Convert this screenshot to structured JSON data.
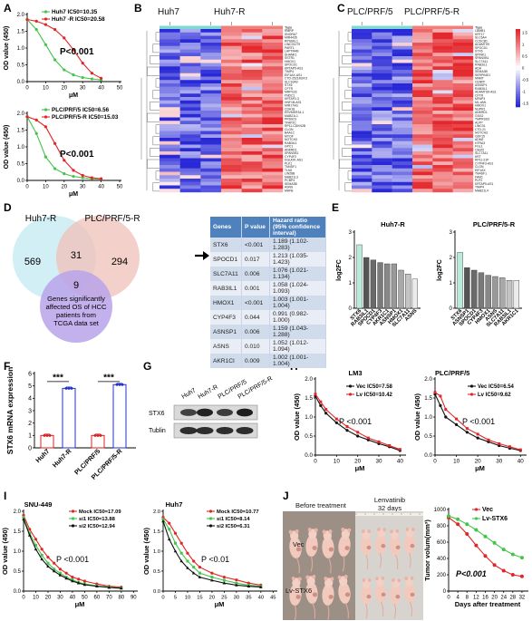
{
  "panels": {
    "A": {
      "label": "A",
      "top": {
        "legend": [
          {
            "name": "Huh7 IC50=10.35",
            "color": "#44c44a"
          },
          {
            "name": "Huh7 -R IC50=20.58",
            "color": "#e32526"
          }
        ],
        "pvalue": "P<0.001",
        "ylabel": "OD value (450)",
        "xlabel": "μM",
        "xticks": [
          "0",
          "10",
          "20",
          "30",
          "40",
          "50"
        ],
        "yticks": [
          "0.0",
          "0.5",
          "1.0",
          "1.5",
          "2.0"
        ]
      },
      "bottom": {
        "legend": [
          {
            "name": "PLC/PRF/5 IC50=6.56",
            "color": "#44c44a"
          },
          {
            "name": "PLC/PRF/5-R IC50=15.03",
            "color": "#e32526"
          }
        ],
        "pvalue": "P<0.001",
        "ylabel": "OD value (450)",
        "xlabel": "μM",
        "xticks": [
          "0",
          "10",
          "20",
          "30",
          "40",
          "50"
        ],
        "yticks": [
          "0.0",
          "0.5",
          "1.0",
          "1.5",
          "2.0"
        ]
      }
    },
    "B": {
      "label": "B",
      "group1": "Huh7",
      "group2": "Huh7-R",
      "type_label": "Type",
      "genes": [
        "RMRP",
        "SNORA7",
        "MIR4435",
        "RPS6KL1",
        "LINC01279",
        "PART1",
        "LAPTM4B",
        "SHANK1",
        "SSTR1",
        "HMOX1",
        "SPOCD1",
        "KRTAP5-AS1",
        "TIMP4",
        "EIF1AX-AS1",
        "CTD-2521M24.5",
        "SLC16A9",
        "STX6",
        "CFTR",
        "MRPS33",
        "FNDC1",
        "KRTAP2-3",
        "HNF1B-AS1",
        "MIR17HG",
        "CDH18",
        "ERVMER34-1",
        "MAB21L1",
        "PRSS23",
        "TFAP2C",
        "RP11-CDKN2B",
        "CLGN",
        "BAALC",
        "MYOF",
        "NOTCH3",
        "RAB3IL1",
        "GPC1",
        "ANKRD1",
        "SPANXB1",
        "CYP4F3",
        "DGUOK-AS1",
        "PLK1",
        "TM4SF1",
        "TLN2",
        "LIN28B",
        "MAB21L3",
        "PCBP4",
        "SEMA3B",
        "ASNS",
        "MAFB"
      ]
    },
    "C": {
      "label": "C",
      "group1": "PLC/PRF/5",
      "group2": "PLC/PRF/5-R",
      "type_label": "Type",
      "scale_ticks": [
        "1.5",
        "1",
        "0.5",
        "0",
        "-0.5",
        "-1",
        "-1.5"
      ],
      "genes": [
        "LAMB1",
        "KRT17",
        "SLC6A4",
        "CCDC80",
        "ADAMTS9",
        "SPOCD1",
        "STX6",
        "SPINK1",
        "SPANXB1",
        "SLC7A11",
        "RAB3IL1",
        "ADA",
        "SEMA3B",
        "SERPIND1",
        "NNMT",
        "CENPF",
        "ASNSP1",
        "RAB3IL1",
        "ADAMTS9-AS1",
        "CFTR",
        "MFAP3",
        "ML-AML",
        "HMOX1",
        "NUPR1",
        "ANKRD1",
        "GSG2",
        "TMPRSS3",
        "ALPP",
        "LINC01",
        "CTD-21",
        "NOTCH3",
        "GDF15",
        "ADM2",
        "HTRA3",
        "FGL1",
        "C8orf2",
        "SLC7A11",
        "KRT",
        "RP11-21P",
        "CYP4F3-AS1",
        "CLGN",
        "EIF1AX",
        "TM4SF1",
        "FAM1",
        "PLP2",
        "KRTAP5-AS1",
        "TIMP4",
        "MAB21L4"
      ]
    },
    "D": {
      "label": "D",
      "venn": {
        "set1_name": "Huh7-R",
        "set2_name": "PLC/PRF/5-R",
        "only1": "569",
        "both": "31",
        "only2": "294",
        "center": "9",
        "set3_label_lines": [
          "Genes significantly",
          "affected OS of HCC",
          "patients from",
          "TCGA data set"
        ]
      },
      "table": {
        "headers": [
          "Genes",
          "P value",
          "Hazard ratio (95% confidence interval)"
        ],
        "rows": [
          [
            "STX6",
            "<0.001",
            "1.189 (1.102-1.283)"
          ],
          [
            "SPOCD1",
            "0.017",
            "1.213 (1.035-1.423)"
          ],
          [
            "SLC7A11",
            "0.006",
            "1.076 (1.021-1.134)"
          ],
          [
            "RAB3IL1",
            "0.001",
            "1.058 (1.024-1.093)"
          ],
          [
            "HMOX1",
            "<0.001",
            "1.003 (1.001-1.004)"
          ],
          [
            "CYP4F3",
            "0.044",
            "0.991 (0.982-1.000)"
          ],
          [
            "ASNSP1",
            "0.006",
            "1.159 (1.043-1.288)"
          ],
          [
            "ASNS",
            "0.010",
            "1.052 (1.012-1.094)"
          ],
          [
            "AKR1CI",
            "0.009",
            "1.002 (1.001-1.004)"
          ]
        ]
      }
    },
    "E": {
      "label": "E",
      "ylabel": "log2FC",
      "yticks": [
        "0",
        "1",
        "2",
        "3"
      ],
      "left_title": "Huh7-R",
      "right_title": "PLC/PRF/5-R"
    },
    "F": {
      "label": "F",
      "ylabel": "STX6 mRNA expression",
      "yticks": [
        "0",
        "1",
        "2",
        "3",
        "4",
        "5",
        "6"
      ],
      "sig1": "***",
      "sig2": "***"
    },
    "G": {
      "label": "G",
      "lanes": [
        "Huh7",
        "Huh7-R",
        "PLC/PRF/5",
        "PLC/PRF/5-R"
      ],
      "rows": [
        "STX6",
        "Tublin"
      ]
    },
    "H": {
      "label": "H",
      "left": {
        "title": "LM3",
        "legend": [
          {
            "name": "Vec IC50=7.58",
            "color": "#111111"
          },
          {
            "name": "Lv  IC50=10.42",
            "color": "#e32526"
          }
        ],
        "pvalue": "P <0.001",
        "ylabel": "OD value (450)",
        "xlabel": "μM",
        "xticks": [
          "0",
          "10",
          "20",
          "30",
          "40"
        ],
        "yticks": [
          "0.0",
          "0.5",
          "1.0",
          "1.5",
          "2.0"
        ]
      },
      "right": {
        "title": "PLC/PRF/5",
        "legend": [
          {
            "name": "Vec IC50=6.54",
            "color": "#111111"
          },
          {
            "name": "Lv  IC50=9.62",
            "color": "#e32526"
          }
        ],
        "pvalue": "P <0.001",
        "ylabel": "OD value (450)",
        "xlabel": "μM",
        "xticks": [
          "0",
          "10",
          "20",
          "30",
          "40"
        ],
        "yticks": [
          "0.0",
          "0.5",
          "1.0",
          "1.5",
          "2.0"
        ]
      }
    },
    "I": {
      "label": "I",
      "left": {
        "title": "SNU-449",
        "legend": [
          {
            "name": "Mock IC50=17.09",
            "color": "#e32526"
          },
          {
            "name": "si1 IC50=13.88",
            "color": "#44c44a"
          },
          {
            "name": "si2 IC50=12.94",
            "color": "#111111"
          }
        ],
        "pvalue": "P <0.001",
        "ylabel": "OD value (450)",
        "xlabel": "μM",
        "xticks": [
          "0",
          "10",
          "20",
          "30",
          "40",
          "50",
          "60",
          "70",
          "80",
          "90"
        ],
        "yticks": [
          "0.0",
          "0.5",
          "1.0",
          "1.5",
          "2.0"
        ]
      },
      "right": {
        "title": "Huh7",
        "legend": [
          {
            "name": "Mock IC50=10.77",
            "color": "#e32526"
          },
          {
            "name": "si1 IC50=8.14",
            "color": "#44c44a"
          },
          {
            "name": "si2 IC50=6.31",
            "color": "#111111"
          }
        ],
        "pvalue": "P <0.01",
        "ylabel": "OD value (450)",
        "xlabel": "μM",
        "xticks": [
          "0",
          "5",
          "10",
          "15",
          "20",
          "25",
          "30",
          "35",
          "40",
          "45"
        ],
        "yticks": [
          "0.0",
          "0.5",
          "1.0",
          "1.5",
          "2.0"
        ]
      }
    },
    "J": {
      "label": "J",
      "before_title": "Before treatment",
      "after_title_line1": "Lenvatinib",
      "after_title_line2": "32 days",
      "row1": "Vec",
      "row2": "Lv-STX6",
      "chart": {
        "legend": [
          {
            "name": "Vec",
            "color": "#e32526"
          },
          {
            "name": "Lv-STX6",
            "color": "#44c44a"
          }
        ],
        "pvalue": "P<0.001",
        "ylabel": "Tumor volum(mm³)",
        "xlabel": "Days after treatment",
        "xticks": [
          "0",
          "4",
          "8",
          "12",
          "16",
          "20",
          "24",
          "28",
          "32"
        ],
        "yticks": [
          "0",
          "200",
          "400",
          "600",
          "800",
          "1000"
        ]
      }
    }
  },
  "chart_data": [
    {
      "id": "A-top",
      "type": "line",
      "x": [
        0,
        5,
        10,
        15,
        20,
        25,
        30,
        35,
        40
      ],
      "series": [
        {
          "name": "Huh7 IC50=10.35",
          "values": [
            1.85,
            1.55,
            1.1,
            0.65,
            0.35,
            0.2,
            0.12,
            0.08,
            0.05
          ]
        },
        {
          "name": "Huh7 -R IC50=20.58",
          "values": [
            1.85,
            1.8,
            1.7,
            1.55,
            1.3,
            0.95,
            0.55,
            0.25,
            0.1
          ]
        }
      ],
      "xlim": [
        0,
        50
      ],
      "ylim": [
        0,
        2
      ]
    },
    {
      "id": "A-bottom",
      "type": "line",
      "x": [
        0,
        5,
        10,
        15,
        20,
        25,
        30,
        35,
        40
      ],
      "series": [
        {
          "name": "PLC/PRF/5 IC50=6.56",
          "values": [
            1.9,
            1.4,
            0.7,
            0.35,
            0.2,
            0.12,
            0.08,
            0.05,
            0.04
          ]
        },
        {
          "name": "PLC/PRF/5-R IC50=15.03",
          "values": [
            1.9,
            1.8,
            1.6,
            1.1,
            0.6,
            0.3,
            0.15,
            0.08,
            0.05
          ]
        }
      ],
      "xlim": [
        0,
        50
      ],
      "ylim": [
        0,
        2
      ]
    },
    {
      "id": "E-left",
      "type": "bar",
      "categories": [
        "STX6",
        "RAB3IL1",
        "SPOCD1",
        "CYP4F3",
        "AKR1C1",
        "ASNSP1",
        "HMOX1",
        "SLC7A11",
        "ASNS"
      ],
      "values": [
        2.5,
        2.0,
        1.9,
        1.8,
        1.75,
        1.75,
        1.5,
        1.35,
        1.15
      ],
      "ylim": [
        0,
        3
      ]
    },
    {
      "id": "E-right",
      "type": "bar",
      "categories": [
        "STX6",
        "ASNSP1",
        "SPOCD1",
        "CYP4F3",
        "HMOX1",
        "ASNS",
        "SLC7A11",
        "RAB3IL1",
        "AKR1C1"
      ],
      "values": [
        2.2,
        1.6,
        1.5,
        1.4,
        1.3,
        1.25,
        1.2,
        1.1,
        1.1
      ],
      "ylim": [
        0,
        3
      ]
    },
    {
      "id": "F",
      "type": "bar",
      "categories": [
        "Huh7",
        "Huh7-R",
        "PLC/PRF/5",
        "PLC/PRF/5-R"
      ],
      "values": [
        1.0,
        4.8,
        1.0,
        5.1
      ],
      "ylim": [
        0,
        6
      ]
    },
    {
      "id": "H-left",
      "type": "line",
      "x": [
        0,
        2.5,
        5,
        10,
        15,
        20,
        25,
        30,
        35,
        40
      ],
      "series": [
        {
          "name": "Vec IC50=7.58",
          "values": [
            1.55,
            1.3,
            1.1,
            0.85,
            0.65,
            0.5,
            0.4,
            0.3,
            0.22,
            0.12
          ]
        },
        {
          "name": "Lv  IC50=10.42",
          "values": [
            1.6,
            1.4,
            1.2,
            0.95,
            0.75,
            0.6,
            0.45,
            0.35,
            0.25,
            0.15
          ]
        }
      ],
      "xlim": [
        0,
        42
      ],
      "ylim": [
        0,
        2
      ]
    },
    {
      "id": "H-right",
      "type": "line",
      "x": [
        0,
        2.5,
        5,
        10,
        15,
        20,
        25,
        30,
        35,
        40
      ],
      "series": [
        {
          "name": "Vec IC50=6.54",
          "values": [
            1.6,
            1.3,
            1.0,
            0.8,
            0.6,
            0.45,
            0.35,
            0.25,
            0.18,
            0.12
          ]
        },
        {
          "name": "Lv  IC50=9.62",
          "values": [
            1.65,
            1.55,
            1.2,
            0.95,
            0.7,
            0.55,
            0.4,
            0.3,
            0.22,
            0.14
          ]
        }
      ],
      "xlim": [
        0,
        42
      ],
      "ylim": [
        0,
        2
      ]
    },
    {
      "id": "I-left",
      "type": "line",
      "x": [
        0,
        5,
        10,
        15,
        20,
        25,
        30,
        35,
        40,
        45,
        50,
        60,
        70,
        80
      ],
      "series": [
        {
          "name": "Mock IC50=17.09",
          "values": [
            1.9,
            1.55,
            1.3,
            1.05,
            0.85,
            0.7,
            0.55,
            0.45,
            0.35,
            0.3,
            0.25,
            0.18,
            0.12,
            0.1
          ]
        },
        {
          "name": "si1 IC50=13.88",
          "values": [
            1.85,
            1.45,
            1.15,
            0.9,
            0.7,
            0.55,
            0.45,
            0.35,
            0.28,
            0.22,
            0.18,
            0.13,
            0.1,
            0.08
          ]
        },
        {
          "name": "si2 IC50=12.94",
          "values": [
            1.8,
            1.4,
            1.05,
            0.8,
            0.62,
            0.5,
            0.4,
            0.32,
            0.25,
            0.2,
            0.16,
            0.12,
            0.09,
            0.07
          ]
        }
      ],
      "xlim": [
        0,
        92
      ],
      "ylim": [
        0,
        2
      ]
    },
    {
      "id": "I-right",
      "type": "line",
      "x": [
        0,
        2.5,
        5,
        7.5,
        10,
        12.5,
        15,
        20,
        25,
        30,
        35,
        40
      ],
      "series": [
        {
          "name": "Mock IC50=10.77",
          "values": [
            1.85,
            1.7,
            1.45,
            1.2,
            0.95,
            0.75,
            0.6,
            0.45,
            0.35,
            0.28,
            0.2,
            0.15
          ]
        },
        {
          "name": "si1 IC50=8.14",
          "values": [
            1.8,
            1.55,
            1.2,
            0.95,
            0.75,
            0.6,
            0.45,
            0.35,
            0.27,
            0.2,
            0.15,
            0.12
          ]
        },
        {
          "name": "si2 IC50=6.31",
          "values": [
            1.75,
            1.3,
            1.0,
            0.75,
            0.58,
            0.45,
            0.35,
            0.27,
            0.2,
            0.15,
            0.12,
            0.1
          ]
        }
      ],
      "xlim": [
        0,
        46
      ],
      "ylim": [
        0,
        2
      ]
    },
    {
      "id": "J-chart",
      "type": "line",
      "x": [
        0,
        4,
        8,
        12,
        16,
        20,
        24,
        28,
        32
      ],
      "series": [
        {
          "name": "Vec",
          "values": [
            900,
            820,
            700,
            560,
            430,
            320,
            250,
            200,
            180
          ]
        },
        {
          "name": "Lv-STX6",
          "values": [
            920,
            880,
            820,
            750,
            670,
            590,
            510,
            450,
            410
          ]
        }
      ],
      "xlim": [
        0,
        34
      ],
      "ylim": [
        0,
        1000
      ]
    }
  ]
}
